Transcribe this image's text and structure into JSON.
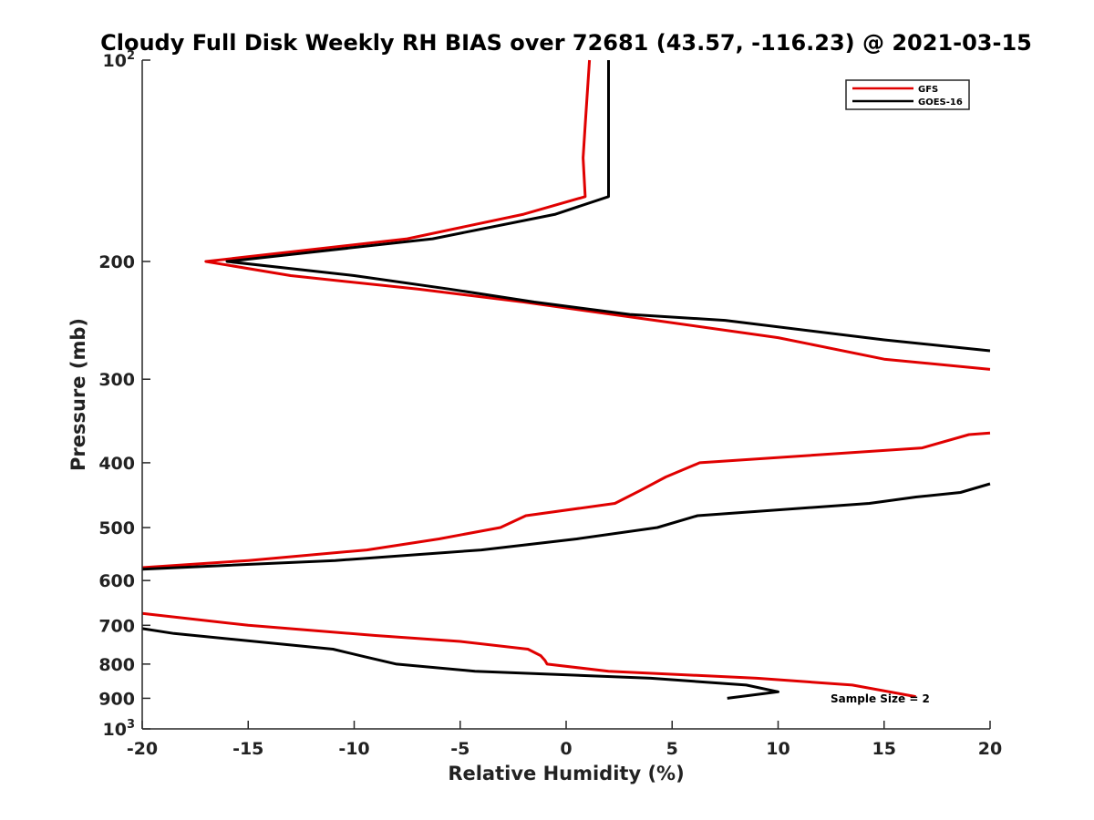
{
  "chart_data": {
    "type": "line",
    "title": "Cloudy Full Disk Weekly RH BIAS over 72681 (43.57, -116.23) @ 2021-03-15",
    "xlabel": "Relative Humidity (%)",
    "ylabel": "Pressure (mb)",
    "xlim": [
      -20,
      20
    ],
    "ylim": [
      100,
      1000
    ],
    "y_scale": "log",
    "y_reversed": true,
    "x_ticks": [
      -20,
      -15,
      -10,
      -5,
      0,
      5,
      10,
      15,
      20
    ],
    "y_ticks": [
      {
        "value": 100,
        "base": "10",
        "exp": "2"
      },
      {
        "value": 200,
        "label": "200"
      },
      {
        "value": 300,
        "label": "300"
      },
      {
        "value": 400,
        "label": "400"
      },
      {
        "value": 500,
        "label": "500"
      },
      {
        "value": 600,
        "label": "600"
      },
      {
        "value": 700,
        "label": "700"
      },
      {
        "value": 800,
        "label": "800"
      },
      {
        "value": 900,
        "label": "900"
      },
      {
        "value": 1000,
        "base": "10",
        "exp": "3"
      }
    ],
    "grid": false,
    "legend": {
      "position": "top-right"
    },
    "annotation": "Sample Size = 2",
    "series": [
      {
        "name": "GFS",
        "color": "#e00000",
        "segments": [
          [
            [
              1.1,
              100
            ],
            [
              0.9,
              125
            ],
            [
              0.8,
              140
            ],
            [
              0.9,
              160
            ],
            [
              -2,
              170
            ],
            [
              -7.5,
              185
            ],
            [
              -17,
              200
            ],
            [
              -13,
              210
            ],
            [
              -7,
              220
            ],
            [
              -2,
              230
            ],
            [
              4.2,
              245
            ],
            [
              10,
              260
            ],
            [
              15,
              280
            ],
            [
              20,
              290
            ]
          ],
          [
            [
              20,
              361
            ],
            [
              19,
              363
            ],
            [
              16.8,
              380
            ],
            [
              6.3,
              400
            ],
            [
              4.7,
              420
            ],
            [
              3.5,
              440
            ],
            [
              2.3,
              460
            ],
            [
              -1.9,
              480
            ],
            [
              -3.1,
              500
            ],
            [
              -6,
              520
            ],
            [
              -9.4,
              540
            ],
            [
              -15,
              560
            ],
            [
              -20,
              574
            ]
          ],
          [
            [
              -20,
              672
            ],
            [
              -15,
              700
            ],
            [
              -9,
              725
            ],
            [
              -5,
              740
            ],
            [
              -1.8,
              760
            ],
            [
              -1.2,
              777
            ],
            [
              -1,
              790
            ],
            [
              -0.9,
              800
            ],
            [
              2,
              820
            ],
            [
              9,
              840
            ],
            [
              13.5,
              860
            ],
            [
              16.5,
              895
            ]
          ]
        ]
      },
      {
        "name": "GOES-16",
        "color": "#000000",
        "segments": [
          [
            [
              2,
              100
            ],
            [
              2,
              120
            ],
            [
              2,
              140
            ],
            [
              2,
              160
            ],
            [
              -0.5,
              170
            ],
            [
              -6.3,
              185
            ],
            [
              -16,
              200
            ],
            [
              -10,
              210
            ],
            [
              -5.5,
              220
            ],
            [
              -1.5,
              230
            ],
            [
              3,
              240
            ],
            [
              7.5,
              245
            ],
            [
              15,
              262
            ],
            [
              20,
              272
            ]
          ],
          [
            [
              20,
              430
            ],
            [
              18.6,
              443
            ],
            [
              16.5,
              450
            ],
            [
              14.3,
              460
            ],
            [
              6.2,
              480
            ],
            [
              4.3,
              500
            ],
            [
              0.5,
              520
            ],
            [
              -4,
              540
            ],
            [
              -10.9,
              560
            ],
            [
              -20,
              577
            ]
          ],
          [
            [
              -20,
              708
            ],
            [
              -18.5,
              720
            ],
            [
              -11,
              760
            ],
            [
              -9.5,
              780
            ],
            [
              -8,
              800
            ],
            [
              -4.3,
              820
            ],
            [
              4,
              840
            ],
            [
              8.5,
              860
            ],
            [
              10,
              880
            ],
            [
              7.6,
              900
            ]
          ]
        ]
      }
    ]
  }
}
